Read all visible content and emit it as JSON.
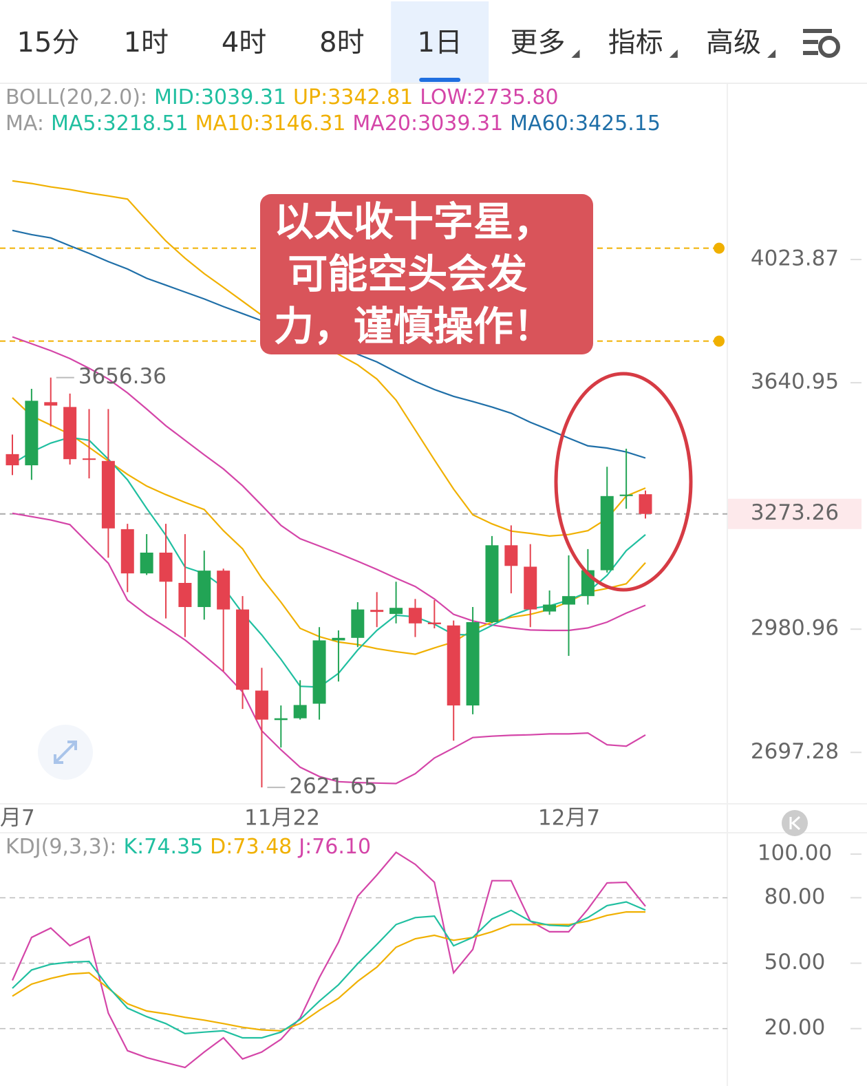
{
  "tabs": [
    {
      "label": "15分"
    },
    {
      "label": "1时"
    },
    {
      "label": "4时"
    },
    {
      "label": "8时"
    },
    {
      "label": "1日",
      "selected": true
    },
    {
      "label": "更多",
      "dropdown": true
    },
    {
      "label": "指标",
      "dropdown": true
    },
    {
      "label": "高级",
      "dropdown": true
    }
  ],
  "chart_data": [
    {
      "type": "candlestick",
      "legend": [
        [
          {
            "text": "BOLL(20,2.0):",
            "color": "#9a9a9a"
          },
          {
            "text": "MID:3039.31",
            "color": "#20bfa0"
          },
          {
            "text": "UP:3342.81",
            "color": "#f0b000"
          },
          {
            "text": "LOW:2735.80",
            "color": "#d445a8"
          }
        ],
        [
          {
            "text": "MA:",
            "color": "#9a9a9a"
          },
          {
            "text": "MA5:3218.51",
            "color": "#20bfa0"
          },
          {
            "text": "MA10:3146.31",
            "color": "#f0b000"
          },
          {
            "text": "MA20:3039.31",
            "color": "#d445a8"
          },
          {
            "text": "MA60:3425.15",
            "color": "#1f6fa8"
          }
        ]
      ],
      "annotation": [
        "以太收十字星，",
        " 可能空头会发",
        "力，谨慎操作！"
      ],
      "x_labels": [
        "月7",
        "11月22",
        "12月7"
      ],
      "log_scale": true,
      "ylim": [
        2587,
        4640
      ],
      "yticks": [
        4023.87,
        3640.95,
        2980.96,
        2697.28
      ],
      "current_price": 3273.26,
      "price_lines": [
        4061,
        3766
      ],
      "up_color": "#22a455",
      "down_color": "#e5424f",
      "open": [
        3436,
        3405,
        3584,
        3570,
        3424,
        3417,
        3233,
        3119,
        3172,
        3095,
        3035,
        3126,
        3029,
        2836,
        2769,
        2773,
        2806,
        2954,
        2960,
        3028,
        3018,
        3033,
        2997,
        2990,
        2802,
        2998,
        3191,
        3136,
        3024,
        3041,
        3062,
        3127,
        3321,
        3326
      ],
      "high": [
        3491,
        3623,
        3656.36,
        3609,
        3564,
        3564,
        3247,
        3220,
        3247,
        3220,
        3177,
        3131,
        3062,
        2889,
        2802,
        2860,
        2986,
        2978,
        3047,
        3072,
        3098,
        3055,
        3052,
        3002,
        3035,
        3215,
        3243,
        3194,
        3076,
        3165,
        3181,
        3401,
        3451,
        3336
      ],
      "low": [
        3378,
        3365,
        3514,
        3407,
        3369,
        3159,
        3072,
        3115,
        3007,
        2962,
        3004,
        2881,
        2794,
        2621.65,
        2708,
        2770,
        2770,
        2857,
        2938,
        2986,
        2995,
        2962,
        2983,
        2723,
        2782,
        2995,
        3069,
        2986,
        3016,
        2917,
        3041,
        3121,
        3287,
        3261
      ],
      "close": [
        3405,
        3588,
        3574,
        3422,
        3420,
        3235,
        3119,
        3172,
        3098,
        3035,
        3126,
        3029,
        2838,
        2770,
        2773,
        2803,
        2954,
        2960,
        3029,
        3023,
        3033,
        2995,
        2993,
        2802,
        2998,
        3191,
        3138,
        3029,
        3041,
        3062,
        3127,
        3321,
        3325,
        3273.26
      ],
      "series": [
        {
          "color": "#f0b000",
          "values": [
            4289,
            4280,
            4268,
            4259,
            4247,
            4237,
            4226,
            4154,
            4085,
            4028,
            3978,
            3934,
            3890,
            3846,
            3817,
            3783,
            3753,
            3726,
            3694,
            3652,
            3590,
            3504,
            3420,
            3340,
            3271,
            3247,
            3228,
            3222,
            3215,
            3219,
            3229,
            3261,
            3321,
            3342.81
          ]
        },
        {
          "color": "#1f6fa8",
          "values": [
            4120,
            4106,
            4095,
            4069,
            4044,
            4017,
            3993,
            3963,
            3941,
            3919,
            3897,
            3873,
            3851,
            3829,
            3812,
            3793,
            3775,
            3754,
            3726,
            3703,
            3673,
            3645,
            3621,
            3601,
            3586,
            3570,
            3552,
            3526,
            3504,
            3481,
            3459,
            3453,
            3442,
            3425.15
          ]
        },
        {
          "color": "#d445a8",
          "values": [
            3779,
            3758,
            3737,
            3713,
            3684,
            3652,
            3611,
            3564,
            3516,
            3475,
            3434,
            3395,
            3349,
            3296,
            3243,
            3208,
            3189,
            3170,
            3150,
            3129,
            3107,
            3086,
            3055,
            3017,
            3001,
            2991,
            2984,
            2979,
            2978,
            2978,
            2984,
            2998,
            3020,
            3039.31
          ]
        },
        {
          "color": "#f0b000",
          "values": [
            3597,
            3544,
            3518,
            3492,
            3455,
            3417,
            3380,
            3348,
            3325,
            3304,
            3285,
            3229,
            3182,
            3107,
            3047,
            2983,
            2963,
            2950,
            2944,
            2934,
            2927,
            2921,
            2936,
            2950,
            2979,
            2998,
            3010,
            3017,
            3029,
            3048,
            3072,
            3081,
            3093,
            3146.31
          ]
        },
        {
          "color": "#20bfa0",
          "values": [
            3409,
            3442,
            3467,
            3483,
            3475,
            3422,
            3365,
            3288,
            3217,
            3135,
            3119,
            3084,
            3020,
            2967,
            2909,
            2846,
            2844,
            2876,
            2931,
            2978,
            3015,
            3011,
            2993,
            2968,
            2967,
            2990,
            3014,
            3031,
            3038,
            3052,
            3072,
            3114,
            3177,
            3218.51
          ]
        },
        {
          "color": "#d445a8",
          "values": [
            3275,
            3266,
            3257,
            3245,
            3194,
            3145,
            3052,
            3016,
            2986,
            2955,
            2918,
            2880,
            2833,
            2745,
            2703,
            2665,
            2645,
            2634,
            2632,
            2631,
            2630,
            2651,
            2685,
            2707,
            2730,
            2733,
            2735,
            2736,
            2738,
            2738,
            2740,
            2714,
            2711,
            2735.8
          ]
        }
      ]
    },
    {
      "type": "line",
      "legend": [
        [
          {
            "text": "KDJ(9,3,3):",
            "color": "#9a9a9a"
          },
          {
            "text": "K:74.35",
            "color": "#20bfa0"
          },
          {
            "text": "D:73.48",
            "color": "#f0b000"
          },
          {
            "text": "J:76.10",
            "color": "#d445a8"
          }
        ]
      ],
      "ylim": [
        -6.3,
        109.8
      ],
      "yticks": [
        {
          "value": 100,
          "label": "100.00"
        },
        {
          "value": 80,
          "label": "80.00"
        },
        {
          "value": 50,
          "label": "50.00"
        },
        {
          "value": 20,
          "label": "20.00"
        }
      ],
      "grid": true,
      "series": [
        {
          "color": "#d445a8",
          "values": [
            42.1,
            61.8,
            66.1,
            58.0,
            62.2,
            27.1,
            9.9,
            6.7,
            4.4,
            2.2,
            9.3,
            15.8,
            6.1,
            9.3,
            15.1,
            24.9,
            43.4,
            59.6,
            80.7,
            90.4,
            100.8,
            95.3,
            87.1,
            45.6,
            56.3,
            87.8,
            87.8,
            69.3,
            64.4,
            64.4,
            74.8,
            86.8,
            87.1,
            76.1
          ]
        },
        {
          "color": "#f0b000",
          "values": [
            34.9,
            40.4,
            43.0,
            45.0,
            45.6,
            38.5,
            31.4,
            28.1,
            26.8,
            25.2,
            23.9,
            22.3,
            20.6,
            19.4,
            19.0,
            22.3,
            28.4,
            33.9,
            41.7,
            48.2,
            57.3,
            61.2,
            62.8,
            60.5,
            61.8,
            64.4,
            67.7,
            67.7,
            67.7,
            67.7,
            69.3,
            71.9,
            73.5,
            73.48
          ]
        },
        {
          "color": "#20bfa0",
          "values": [
            38.5,
            46.9,
            49.5,
            50.5,
            50.8,
            39.1,
            29.4,
            25.5,
            22.3,
            17.7,
            18.4,
            19.0,
            15.8,
            15.8,
            18.4,
            24.2,
            32.6,
            40.1,
            49.8,
            58.6,
            67.7,
            70.9,
            71.6,
            58.0,
            61.8,
            70.3,
            74.2,
            69.3,
            67.4,
            67.0,
            70.9,
            76.4,
            78.1,
            74.35
          ]
        }
      ]
    }
  ]
}
